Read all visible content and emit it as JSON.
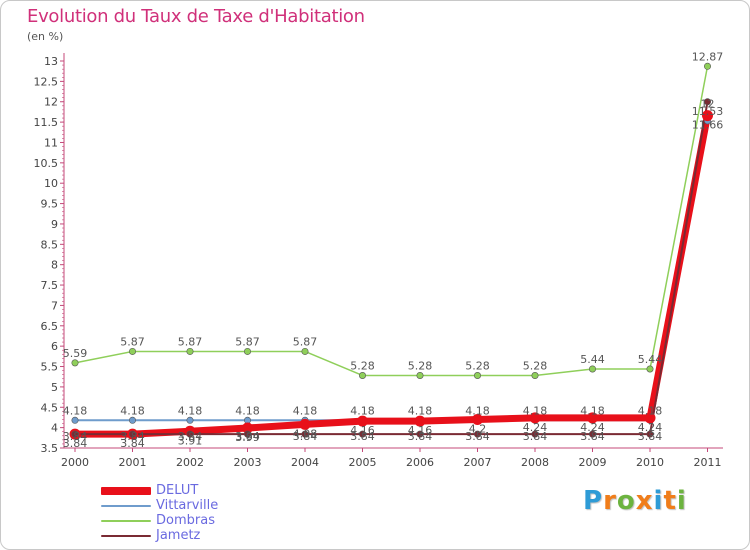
{
  "title": "Evolution du Taux de Taxe d'Habitation",
  "unit": "(en %)",
  "logo_text": "Proxiti",
  "logo_colors": [
    "#2e9bd6",
    "#f07d1a",
    "#6cb33f",
    "#f07d1a",
    "#2e9bd6",
    "#f07d1a",
    "#6cb33f"
  ],
  "chart_data": {
    "type": "line",
    "x": [
      "2000",
      "2001",
      "2002",
      "2003",
      "2004",
      "2005",
      "2006",
      "2007",
      "2008",
      "2009",
      "2010",
      "2011"
    ],
    "ylim": [
      3.5,
      13
    ],
    "yticks": [
      "3.5",
      "4",
      "4.5",
      "5",
      "5.5",
      "6",
      "6.5",
      "7",
      "7.5",
      "8",
      "8.5",
      "9",
      "9.5",
      "10",
      "10.5",
      "11",
      "11.5",
      "12",
      "12.5",
      "13"
    ],
    "grid": false,
    "legend_position": "bottom-left",
    "series": [
      {
        "name": "DELUT",
        "color": "#e8101a",
        "values": [
          3.84,
          3.84,
          3.91,
          3.99,
          4.08,
          4.16,
          4.16,
          4.2,
          4.24,
          4.24,
          4.24,
          11.66
        ],
        "labels": [
          "3.84",
          "3.84",
          "3.91",
          "3.99",
          "4.08",
          "4.16",
          "4.16",
          "4.2",
          "4.24",
          "4.24",
          "4.24",
          "11.66"
        ]
      },
      {
        "name": "Vittarville",
        "color": "#6f9ccc",
        "values": [
          4.18,
          4.18,
          4.18,
          4.18,
          4.18,
          4.18,
          4.18,
          4.18,
          4.18,
          4.18,
          4.18,
          11.53
        ],
        "labels": [
          "4.18",
          "4.18",
          "4.18",
          "4.18",
          "4.18",
          "4.18",
          "4.18",
          "4.18",
          "4.18",
          "4.18",
          "4.18",
          "11.53"
        ]
      },
      {
        "name": "Dombras",
        "color": "#8fcf5a",
        "values": [
          5.59,
          5.87,
          5.87,
          5.87,
          5.87,
          5.28,
          5.28,
          5.28,
          5.28,
          5.44,
          5.44,
          12.87
        ],
        "labels": [
          "5.59",
          "5.87",
          "5.87",
          "5.87",
          "5.87",
          "5.28",
          "5.28",
          "5.28",
          "5.28",
          "5.44",
          "5.44",
          "12.87"
        ]
      },
      {
        "name": "Jametz",
        "color": "#7a2a33",
        "values": [
          3.84,
          3.84,
          3.84,
          3.84,
          3.84,
          3.84,
          3.84,
          3.84,
          3.84,
          3.84,
          3.84,
          12
        ],
        "labels": [
          "3.84",
          "3.84",
          "3.84",
          "3.84",
          "3.84",
          "3.84",
          "3.84",
          "3.84",
          "3.84",
          "3.84",
          "3.84",
          "12"
        ]
      }
    ]
  }
}
